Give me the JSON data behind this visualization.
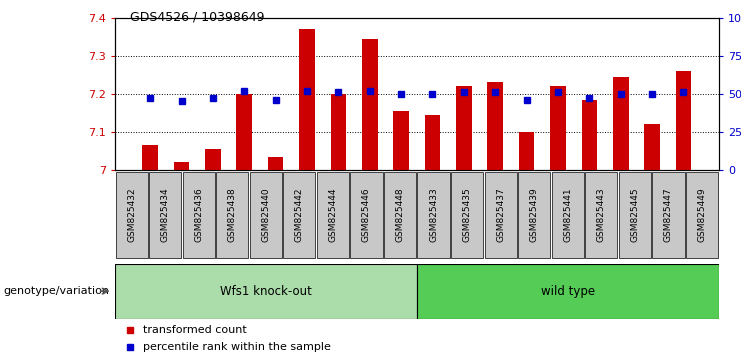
{
  "title": "GDS4526 / 10398649",
  "samples": [
    "GSM825432",
    "GSM825434",
    "GSM825436",
    "GSM825438",
    "GSM825440",
    "GSM825442",
    "GSM825444",
    "GSM825446",
    "GSM825448",
    "GSM825433",
    "GSM825435",
    "GSM825437",
    "GSM825439",
    "GSM825441",
    "GSM825443",
    "GSM825445",
    "GSM825447",
    "GSM825449"
  ],
  "transformed_count": [
    7.065,
    7.02,
    7.055,
    7.2,
    7.035,
    7.37,
    7.2,
    7.345,
    7.155,
    7.145,
    7.22,
    7.23,
    7.1,
    7.22,
    7.185,
    7.245,
    7.12,
    7.26
  ],
  "percentile_rank": [
    47,
    45,
    47,
    52,
    46,
    52,
    51,
    52,
    50,
    50,
    51,
    51,
    46,
    51,
    47,
    50,
    50,
    51
  ],
  "bar_color": "#cc0000",
  "dot_color": "#0000cc",
  "ylim_left": [
    7.0,
    7.4
  ],
  "ylim_right": [
    0,
    100
  ],
  "yticks_left": [
    7.0,
    7.1,
    7.2,
    7.3,
    7.4
  ],
  "ytick_labels_left": [
    "7",
    "7.1",
    "7.2",
    "7.3",
    "7.4"
  ],
  "yticks_right": [
    0,
    25,
    50,
    75,
    100
  ],
  "ytick_labels_right": [
    "0",
    "25",
    "50",
    "75",
    "100%"
  ],
  "group1_label": "Wfs1 knock-out",
  "group2_label": "wild type",
  "group1_count": 9,
  "group2_count": 9,
  "group1_color": "#aaddaa",
  "group2_color": "#55cc55",
  "genotype_label": "genotype/variation",
  "legend_bar_label": "transformed count",
  "legend_dot_label": "percentile rank within the sample",
  "sample_box_color": "#c8c8c8",
  "background_color": "#ffffff"
}
